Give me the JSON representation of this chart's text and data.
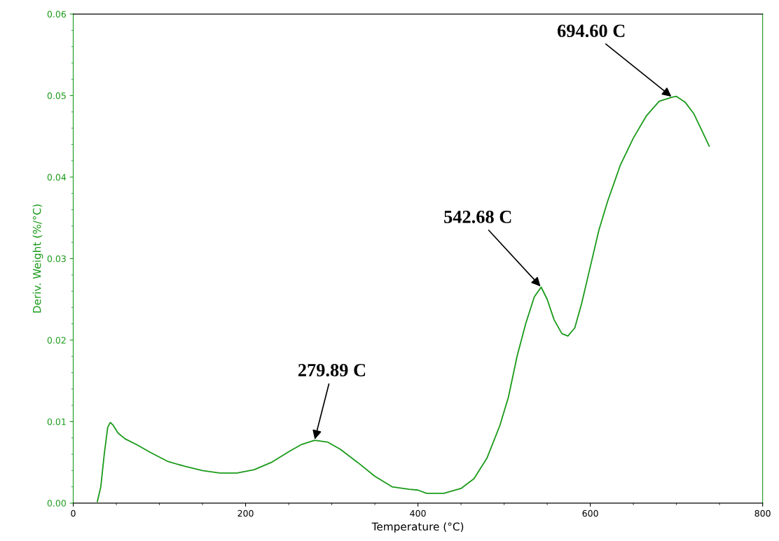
{
  "chart_data": {
    "type": "line",
    "xlabel": "Temperature (°C)",
    "ylabel": "Deriv. Weight (%/°C)",
    "x": [
      28,
      32,
      36,
      40,
      43,
      46,
      52,
      60,
      75,
      90,
      110,
      130,
      150,
      170,
      190,
      210,
      230,
      250,
      265,
      280,
      295,
      310,
      330,
      350,
      370,
      390,
      400,
      410,
      430,
      450,
      465,
      480,
      495,
      505,
      515,
      525,
      535,
      543,
      550,
      558,
      567,
      574,
      582,
      590,
      600,
      610,
      620,
      635,
      650,
      665,
      680,
      695,
      700,
      710,
      720,
      730,
      738
    ],
    "series": [
      {
        "color": "#1a9a1a",
        "values": [
          0.0002,
          0.002,
          0.006,
          0.0093,
          0.0099,
          0.0096,
          0.0086,
          0.0079,
          0.0071,
          0.0062,
          0.0051,
          0.0045,
          0.004,
          0.0037,
          0.0037,
          0.0041,
          0.005,
          0.0063,
          0.0072,
          0.0077,
          0.0075,
          0.0066,
          0.005,
          0.0033,
          0.002,
          0.0017,
          0.0016,
          0.0012,
          0.0012,
          0.0018,
          0.003,
          0.0055,
          0.0095,
          0.013,
          0.018,
          0.022,
          0.0253,
          0.0265,
          0.025,
          0.0225,
          0.0208,
          0.0205,
          0.0215,
          0.0245,
          0.029,
          0.0335,
          0.037,
          0.0415,
          0.0448,
          0.0475,
          0.0493,
          0.0498,
          0.0499,
          0.0492,
          0.0478,
          0.0456,
          0.0438
        ]
      }
    ],
    "xlim": [
      0,
      800
    ],
    "xticks": [
      0,
      200,
      400,
      600,
      800
    ],
    "ylim": [
      0,
      0.06
    ],
    "yticks": [
      {
        "value": 0,
        "label": "0.00"
      },
      0.01,
      0.02,
      0.03,
      0.04,
      0.05,
      0.06
    ],
    "grid": false,
    "legend": false,
    "marker": "none",
    "line_style": "solid",
    "annotations": [
      {
        "text": "279.89 C",
        "x": 280,
        "y": 0.0077
      },
      {
        "text": "542.68 C",
        "x": 543,
        "y": 0.0265
      },
      {
        "text": "694.60 C",
        "x": 695,
        "y": 0.0498
      }
    ]
  }
}
